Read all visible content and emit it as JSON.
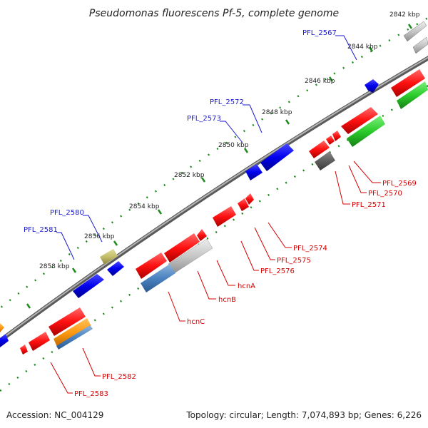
{
  "title": "Pseudomonas fluorescens Pf-5, complete genome",
  "footer": {
    "accession": "Accession: NC_004129",
    "summary": "Topology: circular; Length: 7,074,893 bp; Genes: 6,226"
  },
  "colors": {
    "backbone": "#8c8c8c",
    "tick": "#1f8a1f",
    "label_forward": "#1a1acc",
    "label_reverse": "#d40000"
  },
  "ticks": [
    "2842 kbp",
    "2844 kbp",
    "2846 kbp",
    "2848 kbp",
    "2850 kbp",
    "2852 kbp",
    "2854 kbp",
    "2856 kbp",
    "2858 kbp"
  ],
  "forward_labels": [
    "PFL_2567",
    "PFL_2572",
    "PFL_2573",
    "PFL_2580",
    "PFL_2581"
  ],
  "reverse_labels": [
    "PFL_2569",
    "PFL_2570",
    "PFL_2571",
    "PFL_2574",
    "PFL_2575",
    "PFL_2576",
    "hcnA",
    "hcnB",
    "hcnC",
    "PFL_2582",
    "PFL_2583"
  ]
}
